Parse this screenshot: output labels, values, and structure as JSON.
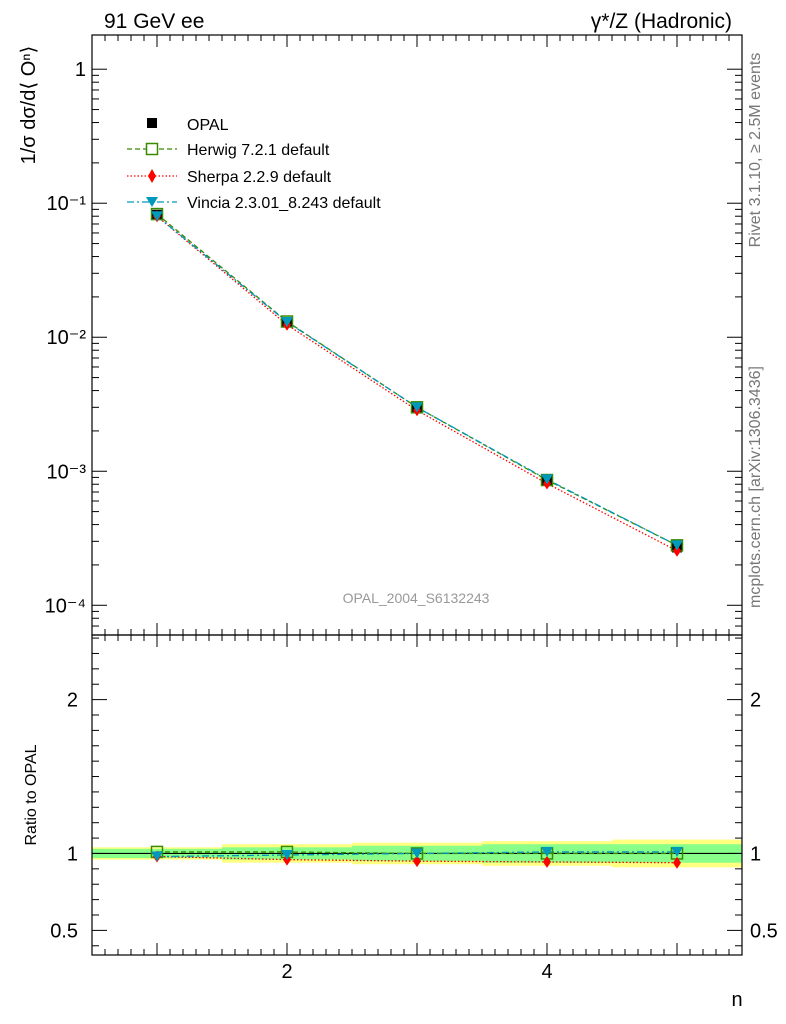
{
  "header": {
    "left_title": "91 GeV ee",
    "right_title": "γ*/Z (Hadronic)"
  },
  "side_text": {
    "rivet": "Rivet 3.1.10, ≥ 2.5M events",
    "source": "mcplots.cern.ch [arXiv:1306.3436]"
  },
  "watermark": "OPAL_2004_S6132243",
  "colors": {
    "opal": "#000000",
    "herwig": "#3a8a00",
    "sherpa": "#ff0000",
    "vincia": "#0099bb",
    "band_outer": "#ffff80",
    "band_inner": "#88ff88"
  },
  "chart_data": [
    {
      "type": "line",
      "scale": "log",
      "ylabel": "1/σ dσ/d⟨ Oⁿ⟩",
      "xlabel": "n",
      "xlim": [
        0.5,
        5.5
      ],
      "ylim": [
        6e-05,
        1.8
      ],
      "yticks": [
        1,
        0.1,
        0.01,
        0.001,
        0.0001
      ],
      "ytick_labels": [
        "1",
        "10⁻¹",
        "10⁻²",
        "10⁻³",
        "10⁻⁴"
      ],
      "x": [
        1,
        2,
        3,
        4,
        5
      ],
      "series": [
        {
          "name": "OPAL",
          "values": [
            0.082,
            0.013,
            0.003,
            0.00085,
            0.00027
          ],
          "marker": "square-filled"
        },
        {
          "name": "Herwig 7.2.1 default",
          "values": [
            0.083,
            0.0131,
            0.003,
            0.00086,
            0.00028
          ],
          "marker": "square-open"
        },
        {
          "name": "Sherpa 2.2.9 default",
          "values": [
            0.08,
            0.0124,
            0.00285,
            0.00081,
            0.000255
          ],
          "marker": "diamond"
        },
        {
          "name": "Vincia 2.3.01_8.243 default",
          "values": [
            0.08,
            0.013,
            0.003,
            0.00087,
            0.00028
          ],
          "marker": "triangle-down"
        }
      ]
    },
    {
      "type": "line",
      "ylabel": "Ratio to OPAL",
      "xlabel": "n",
      "xlim": [
        0.5,
        5.5
      ],
      "ylim": [
        0.34,
        2.42
      ],
      "yticks": [
        0.5,
        1,
        2
      ],
      "ytick_labels": [
        "0.5",
        "1",
        "2"
      ],
      "xticks": [
        2,
        4
      ],
      "xtick_labels": [
        "2",
        "4"
      ],
      "x": [
        1,
        2,
        3,
        4,
        5
      ],
      "band_inner": [
        0.03,
        0.04,
        0.05,
        0.06,
        0.06
      ],
      "band_outer": [
        0.04,
        0.06,
        0.07,
        0.08,
        0.09
      ],
      "series": [
        {
          "name": "Herwig 7.2.1 default",
          "values": [
            1.01,
            1.01,
            1.0,
            1.0,
            1.0
          ],
          "marker": "square-open"
        },
        {
          "name": "Sherpa 2.2.9 default",
          "values": [
            0.98,
            0.96,
            0.95,
            0.945,
            0.94
          ],
          "marker": "diamond"
        },
        {
          "name": "Vincia 2.3.01_8.243 default",
          "values": [
            0.98,
            0.99,
            1.0,
            1.01,
            1.01
          ],
          "marker": "triangle-down"
        }
      ]
    }
  ]
}
